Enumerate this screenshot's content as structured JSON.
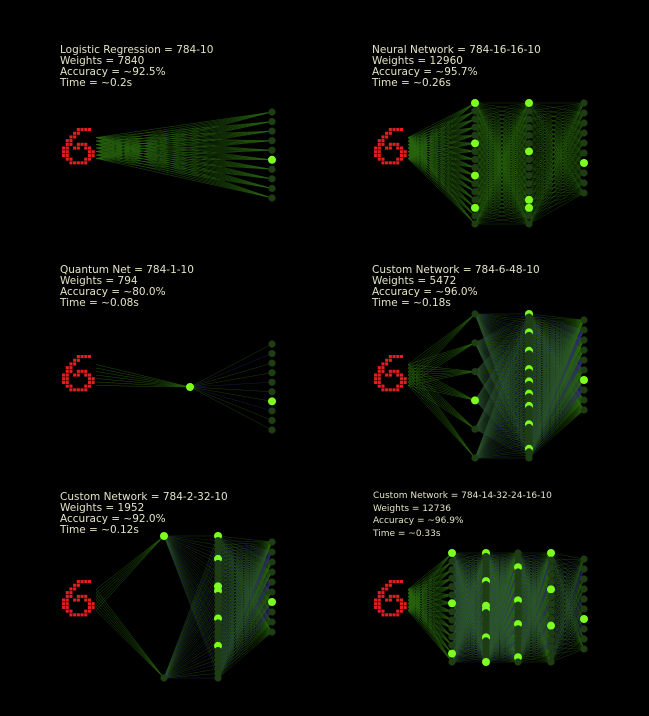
{
  "colors": {
    "background": "#000000",
    "text": "#e2e2c4",
    "digit": "#e02020",
    "node_active": "#7cff1e",
    "node_inactive": "#1f3d14",
    "edge_green": "#4bbf1a",
    "edge_purple": "#5b4fd8"
  },
  "panels": [
    {
      "title": "Logistic Regression = 784-10",
      "weights": "Weights = 7840",
      "accuracy": "Accuracy = ~92.5%",
      "time": "Time = ~0.2s",
      "hidden_layers": [],
      "active": [
        [
          5
        ]
      ],
      "input_digit": "6"
    },
    {
      "title": "Neural Network = 784-16-16-10",
      "weights": "Weights = 12960",
      "accuracy": "Accuracy = ~95.7%",
      "time": "Time = ~0.26s",
      "hidden_layers": [
        16,
        16
      ],
      "active": [
        [
          0,
          5,
          9,
          13
        ],
        [
          0,
          6,
          12,
          13
        ],
        [
          6
        ]
      ],
      "input_digit": "6"
    },
    {
      "title": "Quantum Net = 784-1-10",
      "weights": "Weights = 794",
      "accuracy": "Accuracy = ~80.0%",
      "time": "Time = ~0.08s",
      "hidden_layers": [
        1
      ],
      "active": [
        [
          0
        ],
        [
          6
        ]
      ],
      "input_digit": "6"
    },
    {
      "title": "Custom Network = 784-6-48-10",
      "weights": "Weights = 5472",
      "accuracy": "Accuracy = ~96.0%",
      "time": "Time = ~0.18s",
      "hidden_layers": [
        6,
        48
      ],
      "active": [
        [
          3
        ],
        [
          0,
          6,
          12,
          18,
          22,
          26,
          30,
          36,
          44
        ],
        [
          6
        ]
      ],
      "input_digit": "6"
    },
    {
      "title": "Custom Network = 784-2-32-10",
      "weights": "Weights = 1952",
      "accuracy": "Accuracy = ~92.0%",
      "time": "Time = ~0.12s",
      "hidden_layers": [
        2,
        32
      ],
      "active": [
        [
          0
        ],
        [
          0,
          5,
          11,
          12,
          18,
          24
        ],
        [
          6
        ]
      ],
      "input_digit": "6"
    },
    {
      "title": "Custom Network = 784-14-32-24-16-10",
      "weights": "Weights = 12736",
      "accuracy": "Accuracy = ~96.9%",
      "time": "Time = ~0.33s",
      "hidden_layers": [
        14,
        32,
        24,
        16
      ],
      "active": [
        [
          0,
          6,
          12
        ],
        [
          0,
          8,
          15,
          16,
          24,
          31
        ],
        [
          3,
          10,
          15,
          22
        ],
        [
          0,
          5,
          10
        ],
        [
          6
        ]
      ],
      "input_digit": "6"
    }
  ]
}
